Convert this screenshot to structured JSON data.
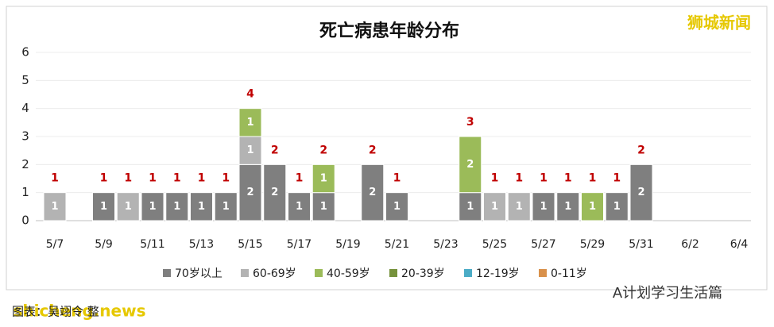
{
  "chart_data": {
    "type": "stacked-bar",
    "title": "死亡病患年龄分布",
    "categories": [
      "5/7",
      null,
      "5/9",
      null,
      "5/11",
      null,
      "5/13",
      null,
      "5/15",
      null,
      "5/17",
      null,
      "5/19",
      null,
      "5/21",
      null,
      "5/23",
      null,
      "5/25",
      null,
      "5/27",
      null,
      "5/29",
      null,
      "5/31",
      null,
      "6/2",
      null,
      "6/4"
    ],
    "series": [
      {
        "name": "70岁以上",
        "color": "#7f7f7f",
        "values": [
          0,
          0,
          1,
          0,
          1,
          1,
          1,
          1,
          2,
          2,
          1,
          1,
          0,
          2,
          1,
          0,
          0,
          1,
          0,
          0,
          1,
          1,
          0,
          1,
          2,
          0,
          0,
          0,
          0
        ]
      },
      {
        "name": "60-69岁",
        "color": "#b3b3b3",
        "values": [
          1,
          0,
          0,
          1,
          0,
          0,
          0,
          0,
          1,
          0,
          0,
          0,
          0,
          0,
          0,
          0,
          0,
          0,
          1,
          1,
          0,
          0,
          0,
          0,
          0,
          0,
          0,
          0,
          0
        ]
      },
      {
        "name": "40-59岁",
        "color": "#9bbb59",
        "values": [
          0,
          0,
          0,
          0,
          0,
          0,
          0,
          0,
          1,
          0,
          0,
          1,
          0,
          0,
          0,
          0,
          0,
          2,
          0,
          0,
          0,
          0,
          1,
          0,
          0,
          0,
          0,
          0,
          0
        ]
      },
      {
        "name": "20-39岁",
        "color": "#76923c",
        "values": [
          0,
          0,
          0,
          0,
          0,
          0,
          0,
          0,
          0,
          0,
          0,
          0,
          0,
          0,
          0,
          0,
          0,
          0,
          0,
          0,
          0,
          0,
          0,
          0,
          0,
          0,
          0,
          0,
          0
        ]
      },
      {
        "name": "12-19岁",
        "color": "#4bacc6",
        "values": [
          0,
          0,
          0,
          0,
          0,
          0,
          0,
          0,
          0,
          0,
          0,
          0,
          0,
          0,
          0,
          0,
          0,
          0,
          0,
          0,
          0,
          0,
          0,
          0,
          0,
          0,
          0,
          0,
          0
        ]
      },
      {
        "name": "0-11岁",
        "color": "#d9914b",
        "values": [
          0,
          0,
          0,
          0,
          0,
          0,
          0,
          0,
          0,
          0,
          0,
          0,
          0,
          0,
          0,
          0,
          0,
          0,
          0,
          0,
          0,
          0,
          0,
          0,
          0,
          0,
          0,
          0,
          0
        ]
      }
    ],
    "totals": [
      1,
      null,
      1,
      1,
      1,
      1,
      1,
      1,
      4,
      2,
      1,
      2,
      null,
      2,
      1,
      null,
      null,
      3,
      1,
      1,
      1,
      1,
      1,
      1,
      2,
      null,
      null,
      null,
      null
    ],
    "ylim": [
      0,
      6
    ],
    "yticks": [
      0,
      1,
      2,
      3,
      4,
      5,
      6
    ],
    "grid": true,
    "legend": "bottom"
  },
  "watermarks": {
    "top_right": "狮城新闻",
    "bottom_left": "shicheng.news",
    "credit": "图表：吴翊令 整",
    "bottom_right": "A计划学习生活篇"
  }
}
